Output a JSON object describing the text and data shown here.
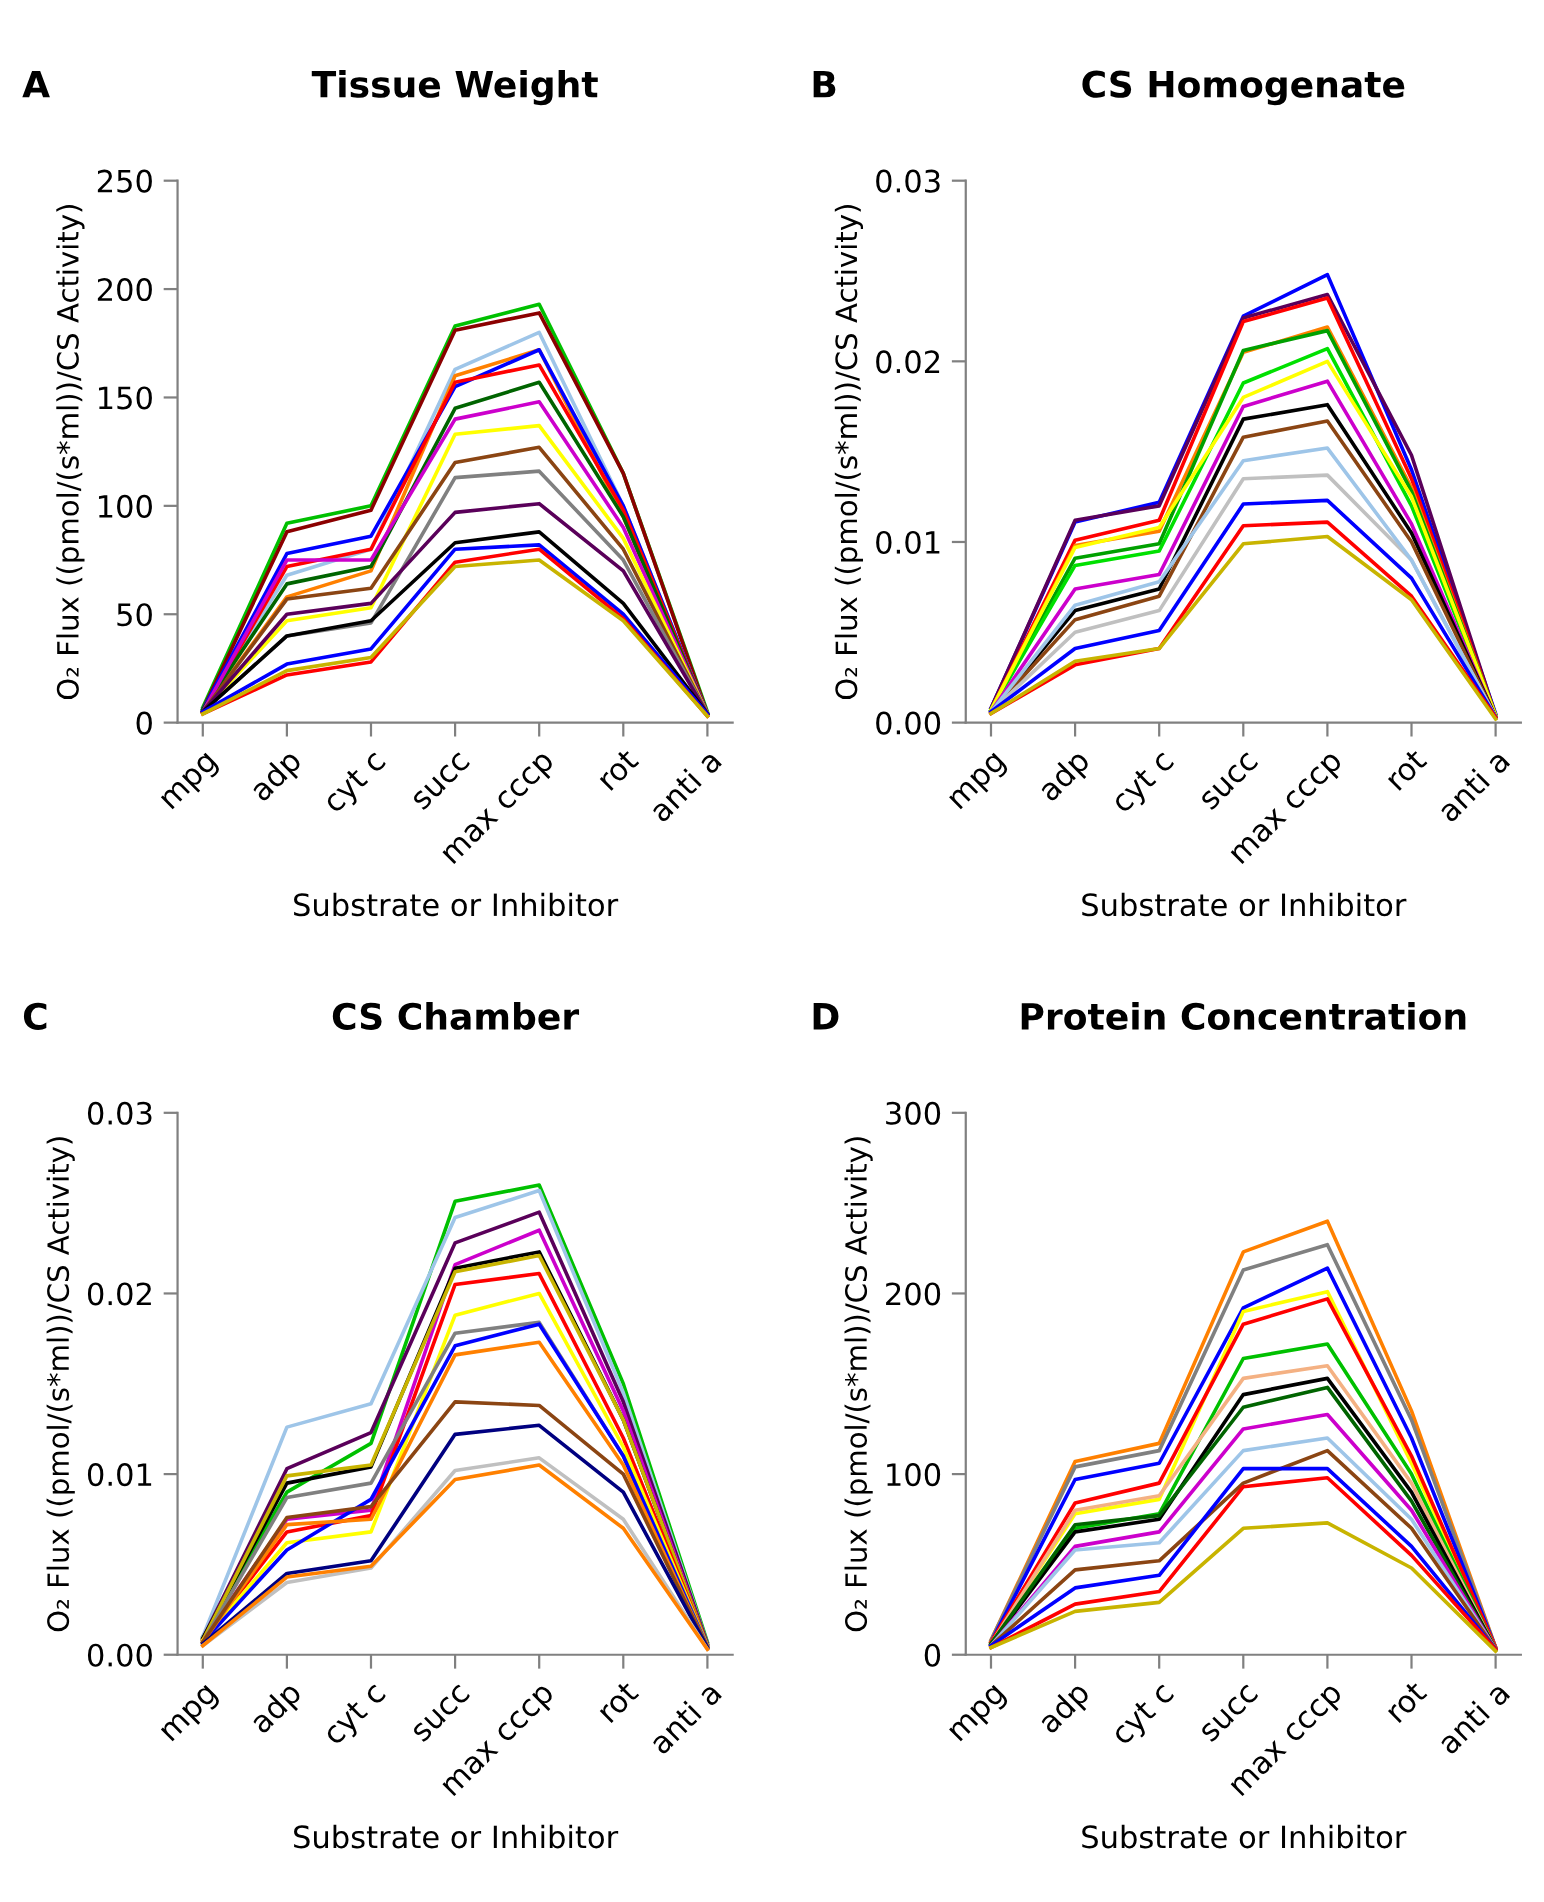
{
  "chart_data": [
    {
      "type": "line",
      "title": "Tissue Weight",
      "annotations": [
        "A"
      ],
      "xlabel": "Substrate or Inhibitor",
      "ylabel": "O₂ Flux ((pmol/(s*ml))/CS Activity)",
      "categories": [
        "mpg",
        "adp",
        "cyt c",
        "succ",
        "max cccp",
        "rot",
        "anti a"
      ],
      "ylim": [
        0,
        250
      ],
      "yticks": [
        0,
        50,
        100,
        150,
        200,
        250
      ],
      "grid": false,
      "marker": "none",
      "line_style": "solid",
      "series": [
        {
          "color": "#00c000",
          "values": [
            7,
            92,
            100,
            183,
            193,
            115,
            5
          ]
        },
        {
          "color": "#8b0000",
          "values": [
            6,
            88,
            98,
            181,
            189,
            115,
            4
          ]
        },
        {
          "color": "#9ec5e8",
          "values": [
            6,
            68,
            80,
            163,
            180,
            100,
            4
          ]
        },
        {
          "color": "#ff8000",
          "values": [
            5,
            58,
            70,
            160,
            172,
            95,
            4
          ]
        },
        {
          "color": "#0000ff",
          "values": [
            6,
            78,
            86,
            155,
            172,
            100,
            4
          ]
        },
        {
          "color": "#ff0000",
          "values": [
            5,
            72,
            80,
            157,
            165,
            98,
            4
          ]
        },
        {
          "color": "#006400",
          "values": [
            6,
            64,
            72,
            145,
            157,
            95,
            4
          ]
        },
        {
          "color": "#cc00cc",
          "values": [
            5,
            75,
            75,
            140,
            148,
            90,
            4
          ]
        },
        {
          "color": "#ffff00",
          "values": [
            5,
            47,
            53,
            133,
            137,
            85,
            4
          ]
        },
        {
          "color": "#8b4513",
          "values": [
            5,
            57,
            62,
            120,
            127,
            80,
            4
          ]
        },
        {
          "color": "#808080",
          "values": [
            5,
            40,
            46,
            113,
            116,
            75,
            4
          ]
        },
        {
          "color": "#5a005a",
          "values": [
            5,
            50,
            55,
            97,
            101,
            70,
            4
          ]
        },
        {
          "color": "#000000",
          "values": [
            5,
            40,
            47,
            83,
            88,
            55,
            4
          ]
        },
        {
          "color": "#0000ff",
          "values": [
            5,
            27,
            34,
            80,
            82,
            50,
            4
          ]
        },
        {
          "color": "#ff0000",
          "values": [
            4,
            22,
            28,
            74,
            80,
            48,
            3
          ]
        },
        {
          "color": "#c8b400",
          "values": [
            4,
            24,
            30,
            72,
            75,
            47,
            3
          ]
        }
      ]
    },
    {
      "type": "line",
      "title": "CS Homogenate",
      "annotations": [
        "B"
      ],
      "xlabel": "Substrate or Inhibitor",
      "ylabel": "O₂ Flux ((pmol/(s*ml))/CS Activity)",
      "categories": [
        "mpg",
        "adp",
        "cyt c",
        "succ",
        "max cccp",
        "rot",
        "anti a"
      ],
      "ylim": [
        0,
        0.03
      ],
      "yticks": [
        {
          "value": 0,
          "label": "0.00"
        },
        {
          "value": 0.01,
          "label": "0.01"
        },
        {
          "value": 0.02,
          "label": "0.02"
        },
        {
          "value": 0.03,
          "label": "0.03"
        }
      ],
      "grid": false,
      "marker": "none",
      "line_style": "solid",
      "series": [
        {
          "color": "#0000ff",
          "values": [
            0.0008,
            0.0111,
            0.0122,
            0.0225,
            0.0248,
            0.014,
            0.0005
          ]
        },
        {
          "color": "#5a005a",
          "values": [
            0.0008,
            0.0112,
            0.012,
            0.0224,
            0.0237,
            0.0148,
            0.0004
          ]
        },
        {
          "color": "#ff0000",
          "values": [
            0.0007,
            0.0101,
            0.0112,
            0.0222,
            0.0235,
            0.0135,
            0.0004
          ]
        },
        {
          "color": "#ff8000",
          "values": [
            0.0007,
            0.0098,
            0.0106,
            0.0205,
            0.0219,
            0.013,
            0.0004
          ]
        },
        {
          "color": "#00a000",
          "values": [
            0.0007,
            0.0091,
            0.0099,
            0.0206,
            0.0217,
            0.0128,
            0.0004
          ]
        },
        {
          "color": "#00e000",
          "values": [
            0.0007,
            0.0087,
            0.0095,
            0.0188,
            0.0207,
            0.012,
            0.0004
          ]
        },
        {
          "color": "#ffff00",
          "values": [
            0.0007,
            0.0097,
            0.0108,
            0.018,
            0.02,
            0.0125,
            0.0004
          ]
        },
        {
          "color": "#cc00cc",
          "values": [
            0.0006,
            0.0074,
            0.0082,
            0.0175,
            0.0189,
            0.011,
            0.0003
          ]
        },
        {
          "color": "#000000",
          "values": [
            0.0006,
            0.0062,
            0.0074,
            0.0168,
            0.0176,
            0.0105,
            0.0003
          ]
        },
        {
          "color": "#8b4513",
          "values": [
            0.0006,
            0.0057,
            0.007,
            0.0158,
            0.0167,
            0.01,
            0.0003
          ]
        },
        {
          "color": "#c0c0c0",
          "values": [
            0.0006,
            0.005,
            0.0062,
            0.0135,
            0.0137,
            0.009,
            0.0003
          ]
        },
        {
          "color": "#9ec5e8",
          "values": [
            0.0006,
            0.0065,
            0.0078,
            0.0145,
            0.0152,
            0.009,
            0.0003
          ]
        },
        {
          "color": "#0000ff",
          "values": [
            0.0006,
            0.0041,
            0.0051,
            0.0121,
            0.0123,
            0.008,
            0.0003
          ]
        },
        {
          "color": "#ff0000",
          "values": [
            0.0005,
            0.0032,
            0.0041,
            0.0109,
            0.0111,
            0.007,
            0.0003
          ]
        },
        {
          "color": "#c8b400",
          "values": [
            0.0005,
            0.0034,
            0.0041,
            0.0099,
            0.0103,
            0.0068,
            0.0002
          ]
        }
      ]
    },
    {
      "type": "line",
      "title": "CS Chamber",
      "annotations": [
        "C"
      ],
      "xlabel": "Substrate or Inhibitor",
      "ylabel": "O₂ Flux ((pmol/(s*ml))/CS Activity)",
      "categories": [
        "mpg",
        "adp",
        "cyt c",
        "succ",
        "max cccp",
        "rot",
        "anti a"
      ],
      "ylim": [
        0,
        0.03
      ],
      "yticks": [
        {
          "value": 0,
          "label": "0.00"
        },
        {
          "value": 0.01,
          "label": "0.01"
        },
        {
          "value": 0.02,
          "label": "0.02"
        },
        {
          "value": 0.03,
          "label": "0.03"
        }
      ],
      "grid": false,
      "marker": "none",
      "line_style": "solid",
      "series": [
        {
          "color": "#00c000",
          "values": [
            0.001,
            0.009,
            0.0117,
            0.0251,
            0.026,
            0.015,
            0.0007
          ]
        },
        {
          "color": "#9ec5e8",
          "values": [
            0.001,
            0.0126,
            0.0139,
            0.0242,
            0.0257,
            0.0145,
            0.0006
          ]
        },
        {
          "color": "#5a005a",
          "values": [
            0.0009,
            0.0103,
            0.0123,
            0.0228,
            0.0245,
            0.014,
            0.0006
          ]
        },
        {
          "color": "#cc00cc",
          "values": [
            0.0008,
            0.0075,
            0.008,
            0.0216,
            0.0235,
            0.0135,
            0.0005
          ]
        },
        {
          "color": "#000000",
          "values": [
            0.0009,
            0.0095,
            0.0104,
            0.0214,
            0.0223,
            0.013,
            0.0005
          ]
        },
        {
          "color": "#c8b400",
          "values": [
            0.0008,
            0.0099,
            0.0105,
            0.0212,
            0.0221,
            0.013,
            0.0005
          ]
        },
        {
          "color": "#ff0000",
          "values": [
            0.0008,
            0.0068,
            0.0077,
            0.0205,
            0.0211,
            0.012,
            0.0005
          ]
        },
        {
          "color": "#ffff00",
          "values": [
            0.0008,
            0.0062,
            0.0068,
            0.0188,
            0.02,
            0.0115,
            0.0005
          ]
        },
        {
          "color": "#808080",
          "values": [
            0.0007,
            0.0087,
            0.0095,
            0.0178,
            0.0184,
            0.011,
            0.0005
          ]
        },
        {
          "color": "#0000ff",
          "values": [
            0.0007,
            0.0058,
            0.0086,
            0.0171,
            0.0183,
            0.011,
            0.0004
          ]
        },
        {
          "color": "#ff8000",
          "values": [
            0.0007,
            0.0072,
            0.0075,
            0.0166,
            0.0173,
            0.0105,
            0.0004
          ]
        },
        {
          "color": "#8b4513",
          "values": [
            0.0007,
            0.0076,
            0.0082,
            0.014,
            0.0138,
            0.01,
            0.0004
          ]
        },
        {
          "color": "#000080",
          "values": [
            0.0006,
            0.0045,
            0.0052,
            0.0122,
            0.0127,
            0.009,
            0.0004
          ]
        },
        {
          "color": "#c0c0c0",
          "values": [
            0.0005,
            0.004,
            0.0048,
            0.0102,
            0.0109,
            0.0075,
            0.0003
          ]
        },
        {
          "color": "#ff8000",
          "values": [
            0.0005,
            0.0043,
            0.0049,
            0.0097,
            0.0105,
            0.007,
            0.0003
          ]
        }
      ]
    },
    {
      "type": "line",
      "title": "Protein Concentration",
      "annotations": [
        "D"
      ],
      "xlabel": "Substrate or Inhibitor",
      "ylabel": "O₂ Flux ((pmol/(s*ml))/CS Activity)",
      "categories": [
        "mpg",
        "adp",
        "cyt c",
        "succ",
        "max cccp",
        "rot",
        "anti a"
      ],
      "ylim": [
        0,
        300
      ],
      "yticks": [
        0,
        100,
        200,
        300
      ],
      "grid": false,
      "marker": "none",
      "line_style": "solid",
      "series": [
        {
          "color": "#ff8000",
          "values": [
            8,
            107,
            117,
            223,
            240,
            135,
            4
          ]
        },
        {
          "color": "#808080",
          "values": [
            8,
            104,
            113,
            213,
            227,
            130,
            4
          ]
        },
        {
          "color": "#0000ff",
          "values": [
            7,
            97,
            106,
            192,
            214,
            120,
            4
          ]
        },
        {
          "color": "#ffff00",
          "values": [
            7,
            78,
            86,
            190,
            201,
            106,
            4
          ]
        },
        {
          "color": "#ff0000",
          "values": [
            7,
            84,
            95,
            183,
            197,
            110,
            4
          ]
        },
        {
          "color": "#00c000",
          "values": [
            6,
            70,
            78,
            164,
            172,
            100,
            3
          ]
        },
        {
          "color": "#f4b183",
          "values": [
            6,
            80,
            88,
            153,
            160,
            95,
            3
          ]
        },
        {
          "color": "#000000",
          "values": [
            6,
            68,
            75,
            144,
            153,
            90,
            3
          ]
        },
        {
          "color": "#006400",
          "values": [
            6,
            72,
            77,
            137,
            148,
            85,
            3
          ]
        },
        {
          "color": "#cc00cc",
          "values": [
            5,
            60,
            68,
            125,
            133,
            80,
            3
          ]
        },
        {
          "color": "#9ec5e8",
          "values": [
            5,
            58,
            62,
            113,
            120,
            75,
            3
          ]
        },
        {
          "color": "#8b4513",
          "values": [
            5,
            47,
            52,
            95,
            113,
            70,
            3
          ]
        },
        {
          "color": "#0000ff",
          "values": [
            5,
            37,
            44,
            103,
            103,
            60,
            3
          ]
        },
        {
          "color": "#ff0000",
          "values": [
            4,
            28,
            35,
            93,
            98,
            55,
            3
          ]
        },
        {
          "color": "#c8b400",
          "values": [
            4,
            24,
            29,
            70,
            73,
            48,
            2
          ]
        }
      ]
    }
  ]
}
